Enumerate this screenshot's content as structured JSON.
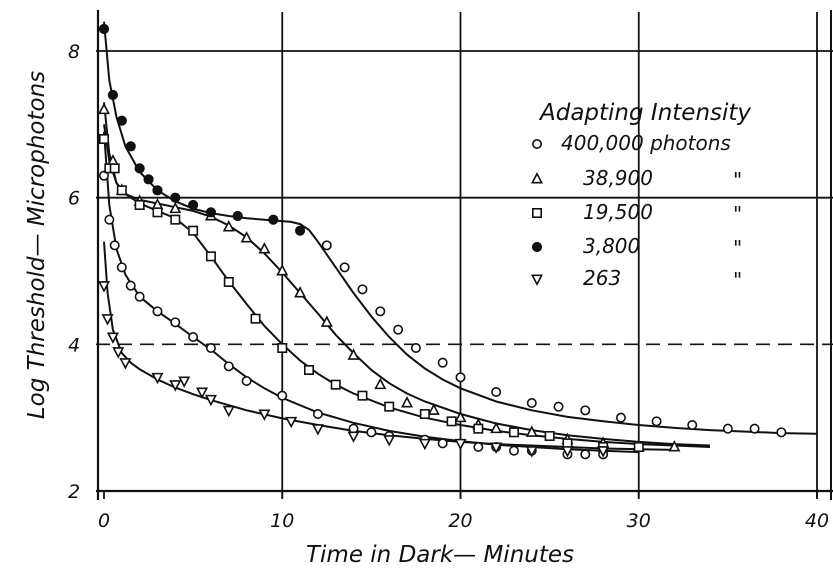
{
  "chart_data": {
    "type": "scatter",
    "xlabel": "Time in Dark— Minutes",
    "ylabel": "Log Threshold— Microphotons",
    "xlim": [
      0,
      40
    ],
    "ylim": [
      2,
      8.5
    ],
    "x_ticks": [
      "0",
      "10",
      "20",
      "30",
      "40"
    ],
    "y_ticks": [
      "2",
      "4",
      "6",
      "8"
    ],
    "grid": true,
    "legend": {
      "title": "Adapting Intensity",
      "placement": "top-right",
      "entries": [
        {
          "marker": "circle-open",
          "label": "400,000 photons"
        },
        {
          "marker": "triangle-up",
          "label": "38,900",
          "ditto": "\""
        },
        {
          "marker": "square",
          "label": "19,500",
          "ditto": "\""
        },
        {
          "marker": "circle-dot",
          "label": "3,800",
          "ditto": "\""
        },
        {
          "marker": "triangle-down",
          "label": "263",
          "ditto": "\""
        }
      ]
    },
    "series": [
      {
        "marker": "circle-open",
        "points": [
          [
            0,
            6.3
          ],
          [
            0.3,
            5.7
          ],
          [
            0.6,
            5.35
          ],
          [
            1,
            5.05
          ],
          [
            1.5,
            4.8
          ],
          [
            2,
            4.65
          ],
          [
            3,
            4.45
          ],
          [
            4,
            4.3
          ],
          [
            5,
            4.1
          ],
          [
            6,
            3.95
          ],
          [
            7,
            3.7
          ],
          [
            8,
            3.5
          ],
          [
            10,
            3.3
          ],
          [
            12,
            3.05
          ],
          [
            14,
            2.85
          ],
          [
            15,
            2.8
          ],
          [
            16,
            2.75
          ],
          [
            18,
            2.7
          ],
          [
            19,
            2.65
          ],
          [
            21,
            2.6
          ],
          [
            22,
            2.6
          ],
          [
            23,
            2.55
          ],
          [
            24,
            2.55
          ],
          [
            26,
            2.5
          ],
          [
            27,
            2.5
          ],
          [
            28,
            2.5
          ]
        ],
        "curve": [
          [
            0,
            6.9
          ],
          [
            0.3,
            5.9
          ],
          [
            0.7,
            5.3
          ],
          [
            1.2,
            4.95
          ],
          [
            2,
            4.65
          ],
          [
            3,
            4.45
          ],
          [
            4,
            4.28
          ],
          [
            5,
            4.1
          ],
          [
            6,
            3.93
          ],
          [
            7,
            3.73
          ],
          [
            8,
            3.55
          ],
          [
            9,
            3.4
          ],
          [
            10,
            3.27
          ],
          [
            12,
            3.07
          ],
          [
            14,
            2.93
          ],
          [
            16,
            2.82
          ],
          [
            18,
            2.74
          ],
          [
            20,
            2.68
          ],
          [
            22,
            2.63
          ],
          [
            24,
            2.6
          ],
          [
            26,
            2.57
          ],
          [
            28,
            2.55
          ],
          [
            30,
            2.53
          ]
        ]
      },
      {
        "marker": "triangle-up",
        "points": [
          [
            0,
            7.2
          ],
          [
            0.5,
            6.5
          ],
          [
            1,
            6.1
          ],
          [
            2,
            5.95
          ],
          [
            3,
            5.9
          ],
          [
            4,
            5.85
          ],
          [
            6,
            5.75
          ],
          [
            7,
            5.6
          ],
          [
            8,
            5.45
          ],
          [
            9,
            5.3
          ],
          [
            10,
            5.0
          ],
          [
            11,
            4.7
          ],
          [
            12.5,
            4.3
          ],
          [
            14,
            3.85
          ],
          [
            15.5,
            3.45
          ],
          [
            17,
            3.2
          ],
          [
            18.5,
            3.1
          ],
          [
            20,
            3.0
          ],
          [
            21,
            2.9
          ],
          [
            22,
            2.85
          ],
          [
            24,
            2.8
          ],
          [
            26,
            2.7
          ],
          [
            28,
            2.65
          ],
          [
            30,
            2.6
          ],
          [
            32,
            2.6
          ]
        ],
        "curve": [
          [
            0,
            7.3
          ],
          [
            0.3,
            6.6
          ],
          [
            0.7,
            6.2
          ],
          [
            1.2,
            6.05
          ],
          [
            2,
            5.97
          ],
          [
            3,
            5.92
          ],
          [
            4,
            5.87
          ],
          [
            5,
            5.82
          ],
          [
            6,
            5.74
          ],
          [
            7,
            5.62
          ],
          [
            8,
            5.46
          ],
          [
            9,
            5.24
          ],
          [
            10,
            4.98
          ],
          [
            11,
            4.7
          ],
          [
            12,
            4.42
          ],
          [
            13,
            4.13
          ],
          [
            14,
            3.88
          ],
          [
            15,
            3.65
          ],
          [
            16,
            3.47
          ],
          [
            17,
            3.33
          ],
          [
            18,
            3.22
          ],
          [
            20,
            3.05
          ],
          [
            22,
            2.92
          ],
          [
            24,
            2.83
          ],
          [
            26,
            2.76
          ],
          [
            28,
            2.71
          ],
          [
            30,
            2.67
          ],
          [
            32,
            2.64
          ],
          [
            34,
            2.62
          ]
        ]
      },
      {
        "marker": "square",
        "points": [
          [
            0,
            6.8
          ],
          [
            0.3,
            6.4
          ],
          [
            0.6,
            6.4
          ],
          [
            1,
            6.1
          ],
          [
            2,
            5.9
          ],
          [
            3,
            5.8
          ],
          [
            4,
            5.7
          ],
          [
            5,
            5.55
          ],
          [
            6,
            5.2
          ],
          [
            7,
            4.85
          ],
          [
            8.5,
            4.35
          ],
          [
            10,
            3.95
          ],
          [
            11.5,
            3.65
          ],
          [
            13,
            3.45
          ],
          [
            14.5,
            3.3
          ],
          [
            16,
            3.15
          ],
          [
            18,
            3.05
          ],
          [
            19.5,
            2.95
          ],
          [
            21,
            2.85
          ],
          [
            23,
            2.8
          ],
          [
            25,
            2.75
          ],
          [
            26,
            2.65
          ],
          [
            28,
            2.6
          ],
          [
            30,
            2.6
          ]
        ],
        "curve": [
          [
            0,
            7.0
          ],
          [
            0.3,
            6.5
          ],
          [
            0.7,
            6.2
          ],
          [
            1.2,
            6.05
          ],
          [
            2,
            5.92
          ],
          [
            3,
            5.82
          ],
          [
            4,
            5.72
          ],
          [
            5,
            5.52
          ],
          [
            6,
            5.2
          ],
          [
            7,
            4.86
          ],
          [
            8,
            4.55
          ],
          [
            9,
            4.25
          ],
          [
            10,
            4.0
          ],
          [
            11,
            3.78
          ],
          [
            12,
            3.6
          ],
          [
            13,
            3.45
          ],
          [
            14,
            3.33
          ],
          [
            16,
            3.14
          ],
          [
            18,
            3.0
          ],
          [
            20,
            2.9
          ],
          [
            22,
            2.82
          ],
          [
            24,
            2.76
          ],
          [
            26,
            2.71
          ],
          [
            28,
            2.67
          ],
          [
            30,
            2.64
          ],
          [
            32,
            2.62
          ],
          [
            34,
            2.6
          ]
        ]
      },
      {
        "marker": "circle-dot",
        "points": [
          [
            0,
            8.3
          ],
          [
            0.5,
            7.4
          ],
          [
            1,
            7.05
          ],
          [
            1.5,
            6.7
          ],
          [
            2,
            6.4
          ],
          [
            2.5,
            6.25
          ],
          [
            3,
            6.1
          ],
          [
            4,
            6.0
          ],
          [
            5,
            5.9
          ],
          [
            6,
            5.8
          ],
          [
            7.5,
            5.75
          ],
          [
            9.5,
            5.7
          ],
          [
            11,
            5.55
          ]
        ],
        "curve": [
          [
            0,
            8.4
          ],
          [
            0.3,
            7.6
          ],
          [
            0.7,
            7.1
          ],
          [
            1.2,
            6.7
          ],
          [
            2,
            6.35
          ],
          [
            3,
            6.1
          ],
          [
            4,
            5.95
          ],
          [
            5,
            5.85
          ],
          [
            6,
            5.79
          ],
          [
            7,
            5.75
          ],
          [
            8,
            5.72
          ],
          [
            9,
            5.7
          ],
          [
            10,
            5.68
          ],
          [
            10.5,
            5.67
          ],
          [
            11,
            5.64
          ],
          [
            11.5,
            5.56
          ],
          [
            12,
            5.4
          ],
          [
            13,
            5.05
          ],
          [
            14,
            4.7
          ],
          [
            15,
            4.38
          ],
          [
            16,
            4.1
          ],
          [
            17,
            3.86
          ],
          [
            18,
            3.67
          ],
          [
            19,
            3.52
          ],
          [
            20,
            3.4
          ],
          [
            22,
            3.22
          ],
          [
            24,
            3.1
          ],
          [
            26,
            3.01
          ],
          [
            28,
            2.95
          ],
          [
            30,
            2.9
          ],
          [
            32,
            2.86
          ],
          [
            34,
            2.83
          ],
          [
            36,
            2.81
          ],
          [
            38,
            2.79
          ],
          [
            40,
            2.78
          ]
        ]
      },
      {
        "marker": "triangle-down",
        "points": [
          [
            0,
            4.8
          ],
          [
            0.2,
            4.35
          ],
          [
            0.5,
            4.1
          ],
          [
            0.8,
            3.9
          ],
          [
            1.2,
            3.75
          ],
          [
            3,
            3.55
          ],
          [
            4,
            3.45
          ],
          [
            4.5,
            3.5
          ],
          [
            5.5,
            3.35
          ],
          [
            6,
            3.25
          ],
          [
            7,
            3.1
          ],
          [
            9,
            3.05
          ],
          [
            10.5,
            2.95
          ],
          [
            12,
            2.85
          ],
          [
            14,
            2.75
          ],
          [
            16,
            2.7
          ],
          [
            18,
            2.65
          ],
          [
            20,
            2.65
          ],
          [
            22,
            2.6
          ],
          [
            24,
            2.55
          ],
          [
            26,
            2.55
          ],
          [
            28,
            2.55
          ]
        ],
        "curve": [
          [
            0,
            5.4
          ],
          [
            0.2,
            4.7
          ],
          [
            0.5,
            4.2
          ],
          [
            1,
            3.88
          ],
          [
            1.5,
            3.75
          ],
          [
            2,
            3.66
          ],
          [
            3,
            3.52
          ],
          [
            4,
            3.41
          ],
          [
            5,
            3.32
          ],
          [
            6,
            3.24
          ],
          [
            8,
            3.1
          ],
          [
            10,
            2.99
          ],
          [
            12,
            2.9
          ],
          [
            14,
            2.82
          ],
          [
            16,
            2.76
          ],
          [
            18,
            2.71
          ],
          [
            20,
            2.67
          ],
          [
            22,
            2.64
          ],
          [
            24,
            2.62
          ],
          [
            26,
            2.6
          ],
          [
            28,
            2.58
          ],
          [
            30,
            2.57
          ],
          [
            32,
            2.56
          ]
        ]
      }
    ],
    "fast_drop_points": [
      [
        12.5,
        5.35
      ],
      [
        13.5,
        5.05
      ],
      [
        14.5,
        4.75
      ],
      [
        15.5,
        4.45
      ],
      [
        16.5,
        4.2
      ],
      [
        17.5,
        3.95
      ],
      [
        19,
        3.75
      ],
      [
        20,
        3.55
      ],
      [
        22,
        3.35
      ],
      [
        24,
        3.2
      ],
      [
        25.5,
        3.15
      ],
      [
        27,
        3.1
      ],
      [
        29,
        3.0
      ],
      [
        31,
        2.95
      ],
      [
        33,
        2.9
      ],
      [
        35,
        2.85
      ],
      [
        36.5,
        2.85
      ],
      [
        38,
        2.8
      ]
    ]
  }
}
